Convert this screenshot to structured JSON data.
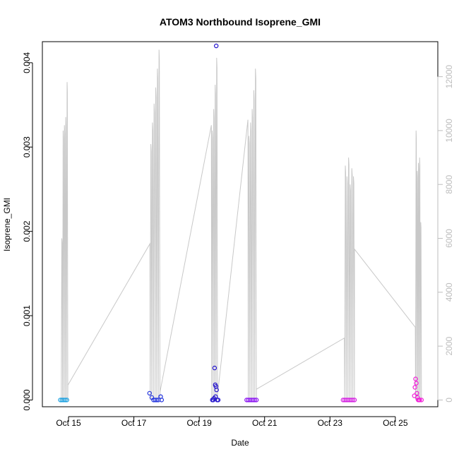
{
  "chart_data": {
    "type": "scatter",
    "title": "ATOM3 Northbound Isoprene_GMI",
    "xlabel": "Date",
    "ylabel": "Isoprene_GMI",
    "x_axis": {
      "unit": "day of October 2017",
      "range": [
        14.2,
        26.3
      ],
      "ticks": [
        {
          "value": 15,
          "label": "Oct 15"
        },
        {
          "value": 17,
          "label": "Oct 17"
        },
        {
          "value": 19,
          "label": "Oct 19"
        },
        {
          "value": 21,
          "label": "Oct 21"
        },
        {
          "value": 23,
          "label": "Oct 23"
        },
        {
          "value": 25,
          "label": "Oct 25"
        }
      ]
    },
    "y_axis_left": {
      "range": [
        -8e-05,
        0.00425
      ],
      "ticks": [
        {
          "value": 0,
          "label": "0.000"
        },
        {
          "value": 0.001,
          "label": "0.001"
        },
        {
          "value": 0.002,
          "label": "0.002"
        },
        {
          "value": 0.003,
          "label": "0.003"
        },
        {
          "value": 0.004,
          "label": "0.004"
        }
      ]
    },
    "y_axis_right": {
      "color": "#bdbdbd",
      "range": [
        -250,
        13300
      ],
      "ticks": [
        {
          "value": 0,
          "label": "0"
        },
        {
          "value": 2000,
          "label": "2000"
        },
        {
          "value": 4000,
          "label": "4000"
        },
        {
          "value": 6000,
          "label": "6000"
        },
        {
          "value": 8000,
          "label": "8000"
        },
        {
          "value": 10000,
          "label": "10000"
        },
        {
          "value": 12000,
          "label": "12000"
        }
      ]
    },
    "grid": false,
    "altitude_trace": {
      "color": "#c8c8c8",
      "flights": [
        {
          "start": 14.78,
          "end": 14.98,
          "peaks": [
            6000,
            10000,
            10200,
            10500,
            11800
          ],
          "exit": 550
        },
        {
          "start": 17.5,
          "end": 17.8,
          "peaks": [
            9500,
            10300,
            11000,
            11600,
            12300,
            13000
          ],
          "entry": 5800,
          "exit": 300
        },
        {
          "start": 19.38,
          "end": 19.56,
          "peaks": [
            10000,
            10800,
            11700,
            12700
          ],
          "entry": 10200,
          "exit": 200
        },
        {
          "start": 20.5,
          "end": 20.75,
          "peaks": [
            9800,
            10300,
            10800,
            11500,
            12300
          ],
          "entry": 10400,
          "exit": 400
        },
        {
          "start": 23.45,
          "end": 23.75,
          "peaks": [
            8700,
            8300,
            9000,
            8000,
            8600,
            8300
          ],
          "entry": 2300,
          "exit": 5600
        },
        {
          "start": 25.62,
          "end": 25.8,
          "peaks": [
            10000,
            8500,
            8800,
            9000,
            6600
          ],
          "entry": 2700,
          "exit": 200
        }
      ]
    },
    "series": [
      {
        "color": "#1aa0e0",
        "points": [
          [
            14.75,
            0.0
          ],
          [
            14.8,
            0.0
          ],
          [
            14.85,
            0.0
          ],
          [
            14.9,
            0.0
          ],
          [
            14.95,
            0.0
          ]
        ]
      },
      {
        "color": "#2233dd",
        "points": [
          [
            17.48,
            8e-05
          ],
          [
            17.55,
            3e-05
          ],
          [
            17.6,
            0.0
          ],
          [
            17.65,
            0.0
          ],
          [
            17.7,
            0.0
          ],
          [
            17.75,
            0.0
          ],
          [
            17.82,
            4e-05
          ],
          [
            17.85,
            0.0
          ]
        ]
      },
      {
        "color": "#2211cc",
        "points": [
          [
            19.4,
            0.0
          ],
          [
            19.43,
            0.0
          ],
          [
            19.45,
            2e-05
          ],
          [
            19.47,
            0.00038
          ],
          [
            19.49,
            0.00018
          ],
          [
            19.5,
            4e-05
          ],
          [
            19.51,
            0.00016
          ],
          [
            19.52,
            0.0042
          ],
          [
            19.53,
            0.00012
          ],
          [
            19.55,
            0.0
          ],
          [
            19.58,
            0.0
          ]
        ]
      },
      {
        "color": "#8a12f0",
        "points": [
          [
            20.45,
            0.0
          ],
          [
            20.5,
            0.0
          ],
          [
            20.55,
            0.0
          ],
          [
            20.6,
            0.0
          ],
          [
            20.65,
            0.0
          ],
          [
            20.7,
            0.0
          ],
          [
            20.75,
            0.0
          ]
        ]
      },
      {
        "color": "#d31fe0",
        "points": [
          [
            23.4,
            0.0
          ],
          [
            23.45,
            0.0
          ],
          [
            23.5,
            0.0
          ],
          [
            23.55,
            0.0
          ],
          [
            23.6,
            0.0
          ],
          [
            23.65,
            0.0
          ],
          [
            23.7,
            0.0
          ],
          [
            23.75,
            0.0
          ]
        ]
      },
      {
        "color": "#f21fd8",
        "points": [
          [
            25.58,
            5e-05
          ],
          [
            25.6,
            0.00015
          ],
          [
            25.62,
            0.00025
          ],
          [
            25.64,
            0.0002
          ],
          [
            25.66,
            8e-05
          ],
          [
            25.68,
            3e-05
          ],
          [
            25.7,
            0.0
          ],
          [
            25.72,
            0.0
          ],
          [
            25.75,
            0.0
          ],
          [
            25.8,
            0.0
          ]
        ]
      }
    ]
  }
}
